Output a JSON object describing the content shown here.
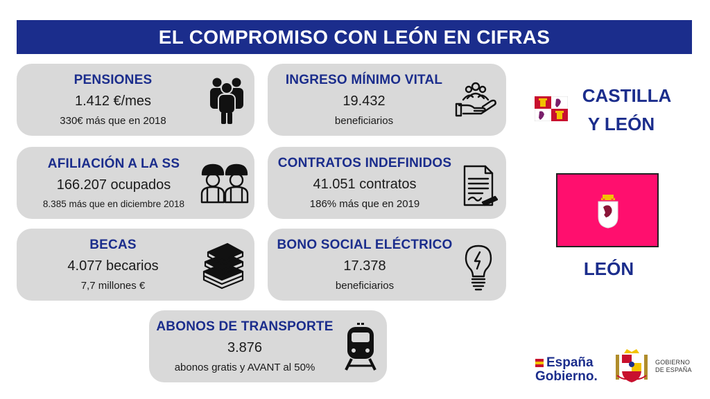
{
  "header": {
    "title": "EL COMPROMISO CON LEÓN EN CIFRAS"
  },
  "cards": {
    "pensiones": {
      "title": "PENSIONES",
      "value": "1.412 €/mes",
      "note": "330€ más que en 2018",
      "icon": "people-group-icon"
    },
    "imv": {
      "title": "INGRESO MÍNIMO VITAL",
      "value": "19.432",
      "note": "beneficiarios",
      "icon": "hand-people-icon"
    },
    "afiliacion": {
      "title": "AFILIACIÓN A LA SS",
      "value": "166.207 ocupados",
      "note": "8.385 más que en diciembre 2018",
      "icon": "workers-icon"
    },
    "contratos": {
      "title": "CONTRATOS INDEFINIDOS",
      "value": "41.051 contratos",
      "note": "186% más que en 2019",
      "icon": "contract-document-icon"
    },
    "becas": {
      "title": "BECAS",
      "value": "4.077 becarios",
      "note": "7,7 millones €",
      "icon": "books-stack-icon"
    },
    "bono": {
      "title": "BONO SOCIAL ELÉCTRICO",
      "value": "17.378",
      "note": "beneficiarios",
      "icon": "lightbulb-icon"
    },
    "abonos": {
      "title": "ABONOS DE TRANSPORTE",
      "value": "3.876",
      "note": "abonos gratis y AVANT al 50%",
      "icon": "train-icon"
    }
  },
  "region": {
    "community_line1": "CASTILLA",
    "community_line2": "Y LEÓN",
    "province": "LEÓN",
    "province_flag_color": "#ff0f6e"
  },
  "footer": {
    "brand_line1": "España",
    "brand_line2": "Gobierno.",
    "gov_line1": "GOBIERNO",
    "gov_line2": "DE ESPAÑA"
  },
  "colors": {
    "navy": "#1b2d8c",
    "card_bg": "#d9d9d9"
  }
}
